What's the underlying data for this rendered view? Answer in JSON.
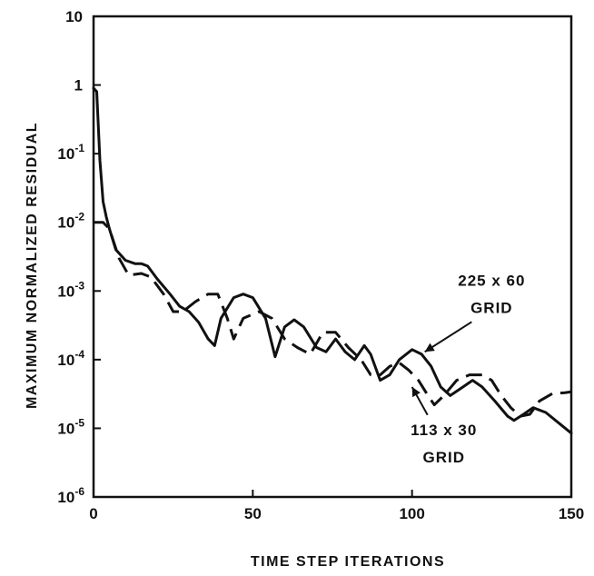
{
  "chart_data": {
    "type": "line",
    "xlabel": "TIME STEP ITERATIONS",
    "ylabel": "MAXIMUM NORMALIZED RESIDUAL",
    "xlim": [
      0,
      150
    ],
    "ylim": [
      1e-06,
      10
    ],
    "yscale": "log",
    "xticks": [
      {
        "value": 0,
        "label": "0"
      },
      {
        "value": 50,
        "label": "50"
      },
      {
        "value": 100,
        "label": "100"
      },
      {
        "value": 150,
        "label": "150"
      }
    ],
    "yticks": [
      {
        "value": 10,
        "label": "10",
        "exp": ""
      },
      {
        "value": 1,
        "label": "1",
        "exp": ""
      },
      {
        "value": 0.1,
        "label": "10",
        "exp": "-1"
      },
      {
        "value": 0.01,
        "label": "10",
        "exp": "-2"
      },
      {
        "value": 0.001,
        "label": "10",
        "exp": "-3"
      },
      {
        "value": 0.0001,
        "label": "10",
        "exp": "-4"
      },
      {
        "value": 1e-05,
        "label": "10",
        "exp": "-5"
      },
      {
        "value": 1e-06,
        "label": "10",
        "exp": "-6"
      }
    ],
    "grid": false,
    "series": [
      {
        "name": "225 x 60 GRID",
        "style": "solid",
        "color": "#111111",
        "points": [
          [
            0,
            0.9
          ],
          [
            1,
            0.8
          ],
          [
            2,
            0.08
          ],
          [
            3,
            0.02
          ],
          [
            4,
            0.012
          ],
          [
            5,
            0.008
          ],
          [
            7,
            0.004
          ],
          [
            10,
            0.0028
          ],
          [
            13,
            0.0025
          ],
          [
            15,
            0.0025
          ],
          [
            17,
            0.0023
          ],
          [
            20,
            0.0015
          ],
          [
            24,
            0.0009
          ],
          [
            27,
            0.0006
          ],
          [
            30,
            0.0005
          ],
          [
            33,
            0.00035
          ],
          [
            36,
            0.0002
          ],
          [
            38,
            0.00016
          ],
          [
            40,
            0.0004
          ],
          [
            44,
            0.0008
          ],
          [
            47,
            0.0009
          ],
          [
            50,
            0.0008
          ],
          [
            54,
            0.0004
          ],
          [
            57,
            0.00011
          ],
          [
            60,
            0.0003
          ],
          [
            63,
            0.00038
          ],
          [
            66,
            0.0003
          ],
          [
            70,
            0.00015
          ],
          [
            73,
            0.00013
          ],
          [
            76,
            0.0002
          ],
          [
            79,
            0.00013
          ],
          [
            82,
            0.0001
          ],
          [
            85,
            0.00016
          ],
          [
            87,
            0.00012
          ],
          [
            90,
            5e-05
          ],
          [
            93,
            6e-05
          ],
          [
            96,
            0.0001
          ],
          [
            100,
            0.00014
          ],
          [
            103,
            0.00012
          ],
          [
            106,
            8e-05
          ],
          [
            109,
            4e-05
          ],
          [
            112,
            3e-05
          ],
          [
            116,
            4e-05
          ],
          [
            119,
            5e-05
          ],
          [
            122,
            4e-05
          ],
          [
            126,
            2.5e-05
          ],
          [
            130,
            1.5e-05
          ],
          [
            132,
            1.3e-05
          ],
          [
            135,
            1.6e-05
          ],
          [
            138,
            2e-05
          ],
          [
            142,
            1.7e-05
          ],
          [
            146,
            1.2e-05
          ],
          [
            150,
            8.5e-06
          ]
        ]
      },
      {
        "name": "113 x 30 GRID",
        "style": "dashed",
        "color": "#111111",
        "points": [
          [
            0,
            0.01
          ],
          [
            3,
            0.01
          ],
          [
            5,
            0.008
          ],
          [
            8,
            0.003
          ],
          [
            11,
            0.0017
          ],
          [
            15,
            0.0018
          ],
          [
            18,
            0.0016
          ],
          [
            22,
            0.0009
          ],
          [
            25,
            0.0005
          ],
          [
            28,
            0.0005
          ],
          [
            32,
            0.0007
          ],
          [
            36,
            0.0009
          ],
          [
            39,
            0.0009
          ],
          [
            42,
            0.0004
          ],
          [
            44,
            0.0002
          ],
          [
            47,
            0.0004
          ],
          [
            52,
            0.0005
          ],
          [
            56,
            0.0004
          ],
          [
            60,
            0.0002
          ],
          [
            64,
            0.00015
          ],
          [
            68,
            0.00012
          ],
          [
            72,
            0.00025
          ],
          [
            76,
            0.00025
          ],
          [
            80,
            0.00015
          ],
          [
            84,
            0.0001
          ],
          [
            87,
            6e-05
          ],
          [
            90,
            6e-05
          ],
          [
            93,
            8e-05
          ],
          [
            96,
            9e-05
          ],
          [
            99,
            7e-05
          ],
          [
            102,
            5e-05
          ],
          [
            105,
            3e-05
          ],
          [
            107,
            2.2e-05
          ],
          [
            110,
            3e-05
          ],
          [
            114,
            5e-05
          ],
          [
            118,
            6e-05
          ],
          [
            122,
            6e-05
          ],
          [
            125,
            5e-05
          ],
          [
            128,
            3e-05
          ],
          [
            131,
            2e-05
          ],
          [
            134,
            1.5e-05
          ],
          [
            137,
            1.6e-05
          ],
          [
            140,
            2.5e-05
          ],
          [
            144,
            3.2e-05
          ],
          [
            148,
            3.3e-05
          ],
          [
            150,
            3.4e-05
          ]
        ]
      }
    ],
    "annotations": [
      {
        "lines": [
          "225 x 60",
          "GRID"
        ],
        "x": 125,
        "y": 0.0012,
        "arrow_to": [
          104,
          0.00013
        ]
      },
      {
        "lines": [
          "113 x 30",
          "GRID"
        ],
        "x": 110,
        "y": 8e-06,
        "arrow_to": [
          100,
          4e-05
        ]
      }
    ]
  }
}
